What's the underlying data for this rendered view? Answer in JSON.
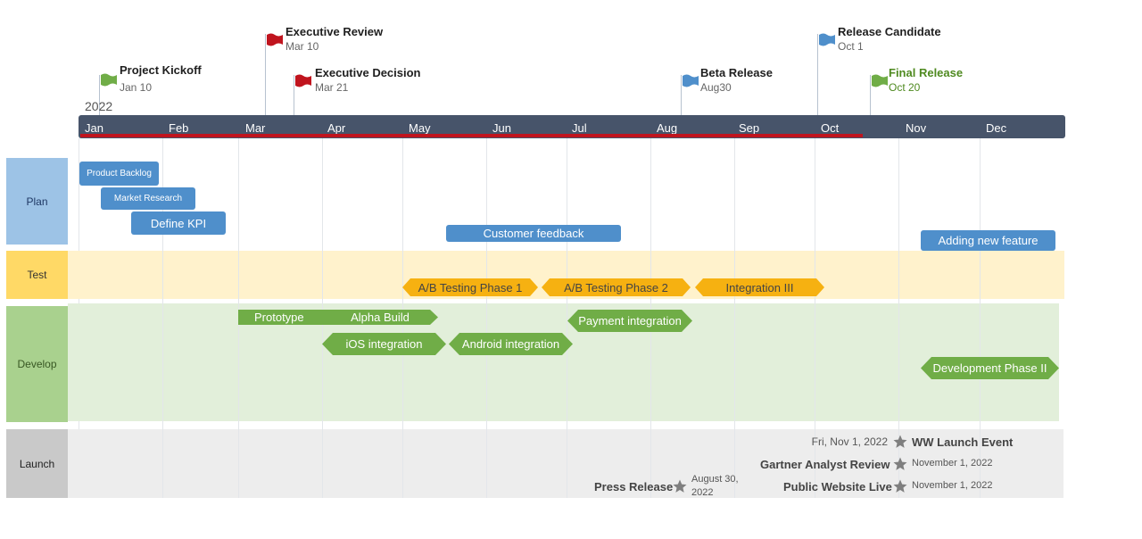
{
  "timeline": {
    "year": "2022",
    "months": [
      "Jan",
      "Feb",
      "Mar",
      "Apr",
      "May",
      "Jun",
      "Jul",
      "Aug",
      "Sep",
      "Oct",
      "Nov",
      "Dec"
    ],
    "progress_through": "Oct 20"
  },
  "milestones": [
    {
      "title": "Project Kickoff",
      "date": "Jan 10",
      "flag_color": "#70ad47"
    },
    {
      "title": "Executive Review",
      "date": "Mar 10",
      "flag_color": "#c0141e"
    },
    {
      "title": "Executive Decision",
      "date": "Mar 21",
      "flag_color": "#c0141e"
    },
    {
      "title": "Beta Release",
      "date": "Aug30",
      "flag_color": "#4f8fcb"
    },
    {
      "title": "Release Candidate",
      "date": "Oct 1",
      "flag_color": "#4f8fcb"
    },
    {
      "title": "Final Release",
      "date": "Oct 20",
      "flag_color": "#70ad47",
      "title_color": "#4f8a20"
    }
  ],
  "lanes": {
    "plan": {
      "label": "Plan",
      "color": "#9dc3e6",
      "text_color": "#1f3864"
    },
    "test": {
      "label": "Test",
      "color": "#ffd966",
      "text_color": "#333333",
      "bg": "#fff2cc"
    },
    "develop": {
      "label": "Develop",
      "color": "#a9d18e",
      "text_color": "#385723",
      "bg": "#e2efda"
    },
    "launch": {
      "label": "Launch",
      "color": "#c9c9c9",
      "text_color": "#222222",
      "bg": "#ededed"
    }
  },
  "plan_tasks": [
    "Product Backlog",
    "Market Research",
    "Define KPI",
    "Customer feedback",
    "Adding new feature"
  ],
  "test_tasks": [
    "A/B Testing Phase 1",
    "A/B Testing Phase 2",
    "Integration III"
  ],
  "develop_tasks": [
    "Prototype",
    "Alpha Build",
    "iOS integration",
    "Android integration",
    "Payment integration",
    "Development Phase II"
  ],
  "launch_events": [
    {
      "title": "WW Launch Event",
      "date": "Fri, Nov 1, 2022"
    },
    {
      "title": "Gartner Analyst Review",
      "date": "November 1, 2022"
    },
    {
      "title": "Public Website Live",
      "date": "November 1, 2022"
    },
    {
      "title": "Press Release",
      "date_line1": "August 30,",
      "date_line2": "2022"
    }
  ]
}
